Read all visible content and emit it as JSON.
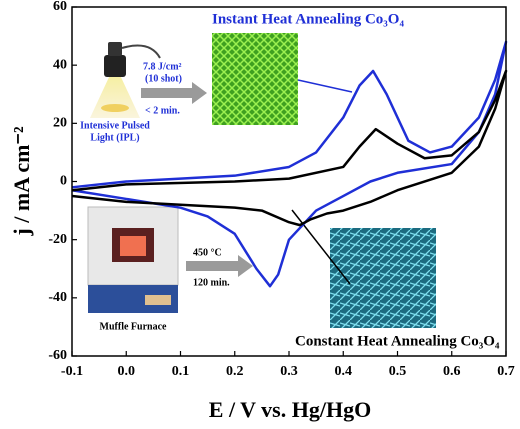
{
  "chart_data": {
    "type": "line",
    "x_label": "E / V vs. Hg/HgO",
    "y_label": "j / mA cm⁻²",
    "xlim": [
      -0.1,
      0.7
    ],
    "xticks": [
      -0.1,
      {
        "value": 0,
        "label": "0.0"
      },
      0.1,
      0.2,
      0.3,
      0.4,
      0.5,
      0.6,
      0.7
    ],
    "ylim": [
      -60,
      60
    ],
    "yticks": [
      -60,
      -40,
      -20,
      0,
      20,
      40,
      60
    ],
    "series": [
      {
        "name": "Instant Heat Annealing Co₃O₄",
        "color": "#1f2fd6",
        "x": [
          -0.1,
          0.0,
          0.1,
          0.2,
          0.3,
          0.35,
          0.4,
          0.43,
          0.455,
          0.48,
          0.52,
          0.56,
          0.6,
          0.65,
          0.68,
          0.7,
          0.68,
          0.65,
          0.6,
          0.5,
          0.45,
          0.4,
          0.35,
          0.3,
          0.28,
          0.265,
          0.24,
          0.2,
          0.15,
          0.1,
          0.0,
          -0.1
        ],
        "values": [
          -2,
          0,
          1,
          2,
          5,
          10,
          22,
          33,
          38,
          30,
          14,
          10,
          12,
          22,
          35,
          48,
          30,
          17,
          6,
          3,
          0,
          -5,
          -10,
          -20,
          -32,
          -36,
          -30,
          -18,
          -12,
          -9,
          -6,
          -3
        ]
      },
      {
        "name": "Constant Heat Annealing Co₃O₄",
        "color": "#000000",
        "x": [
          -0.1,
          0.0,
          0.2,
          0.3,
          0.4,
          0.43,
          0.46,
          0.5,
          0.55,
          0.6,
          0.65,
          0.68,
          0.7,
          0.68,
          0.65,
          0.6,
          0.5,
          0.45,
          0.4,
          0.37,
          0.34,
          0.32,
          0.3,
          0.25,
          0.2,
          0.1,
          0.0,
          -0.1
        ],
        "values": [
          -3,
          -1,
          0,
          1,
          5,
          12,
          18,
          13,
          8,
          9,
          17,
          28,
          38,
          25,
          12,
          3,
          -3,
          -7,
          -10,
          -11,
          -13,
          -15,
          -14,
          -10,
          -9,
          -8,
          -7,
          -5
        ]
      }
    ],
    "annotations": {
      "ipl_dose": "7.8 J/cm²",
      "ipl_shots": "(10 shot)",
      "ipl_time": "< 2 min.",
      "ipl_label": [
        "Intensive Pulsed",
        "Light (IPL)"
      ],
      "furnace_temp": "450 °C",
      "furnace_time": "120 min.",
      "furnace_label": "Muffle Furnace"
    }
  }
}
